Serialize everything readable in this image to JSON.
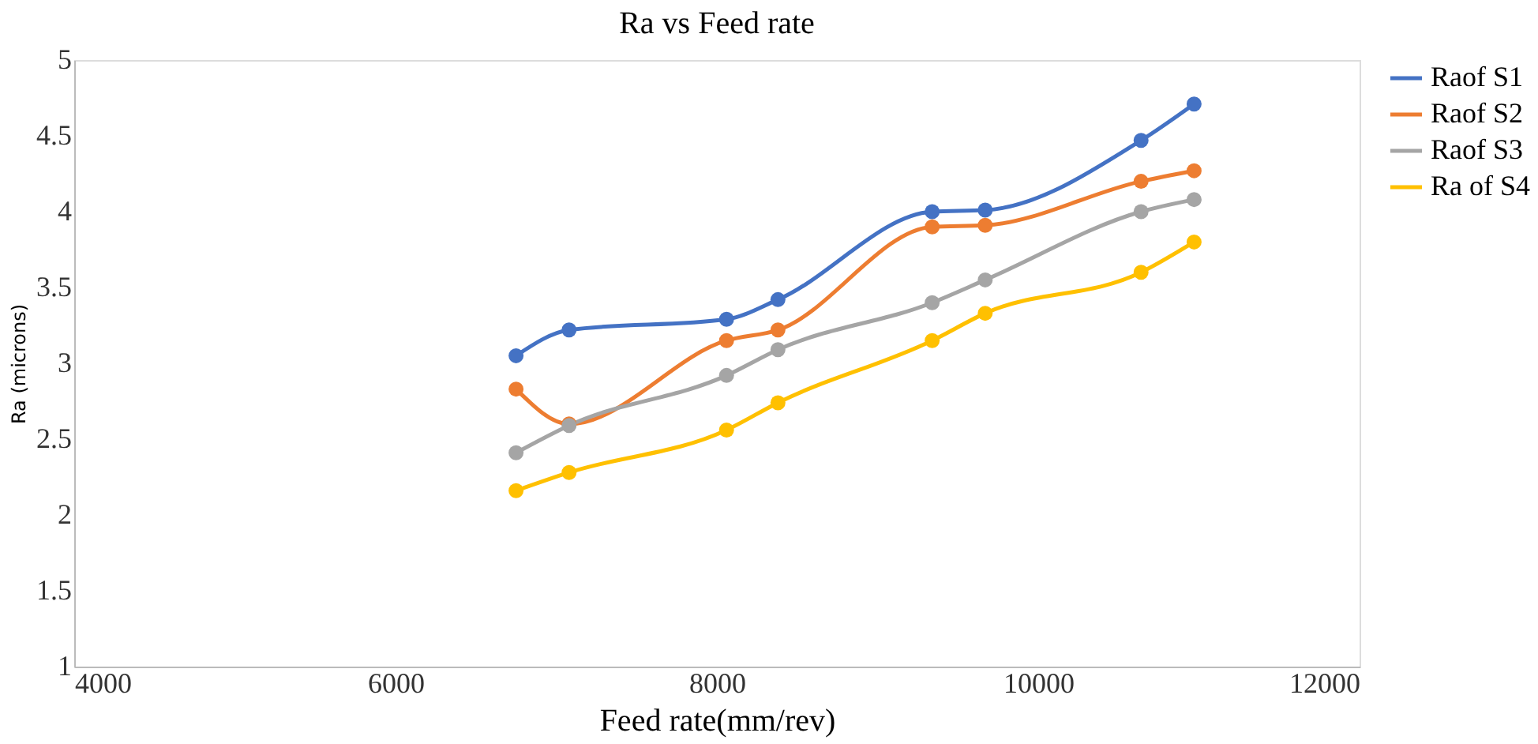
{
  "chart_data": {
    "type": "line",
    "title": "Ra vs Feed rate",
    "xlabel": "Feed rate(mm/rev)",
    "ylabel": "Ra (microns)",
    "x": [
      6750,
      7080,
      8060,
      8380,
      9340,
      9670,
      10640,
      10970
    ],
    "series": [
      {
        "name": "Raof S1",
        "color": "#4472c4",
        "values": [
          3.05,
          3.22,
          3.29,
          3.42,
          4.0,
          4.01,
          4.47,
          4.71
        ]
      },
      {
        "name": "Raof S2",
        "color": "#ed7d31",
        "values": [
          2.83,
          2.6,
          3.15,
          3.22,
          3.9,
          3.91,
          4.2,
          4.27
        ]
      },
      {
        "name": "Raof S3",
        "color": "#a5a5a5",
        "values": [
          2.41,
          2.59,
          2.92,
          3.09,
          3.4,
          3.55,
          4.0,
          4.08
        ]
      },
      {
        "name": "Ra of S4",
        "color": "#ffc000",
        "values": [
          2.16,
          2.28,
          2.56,
          2.74,
          3.15,
          3.33,
          3.6,
          3.8
        ]
      }
    ],
    "xlim": [
      4000,
      12000
    ],
    "xticks": [
      4000,
      6000,
      8000,
      10000,
      12000
    ],
    "ylim": [
      1,
      5
    ],
    "yticks": [
      1,
      1.5,
      2,
      2.5,
      3,
      3.5,
      4,
      4.5,
      5
    ],
    "grid": false,
    "legend": "top right",
    "marker": "circle",
    "line_style": "solid"
  }
}
